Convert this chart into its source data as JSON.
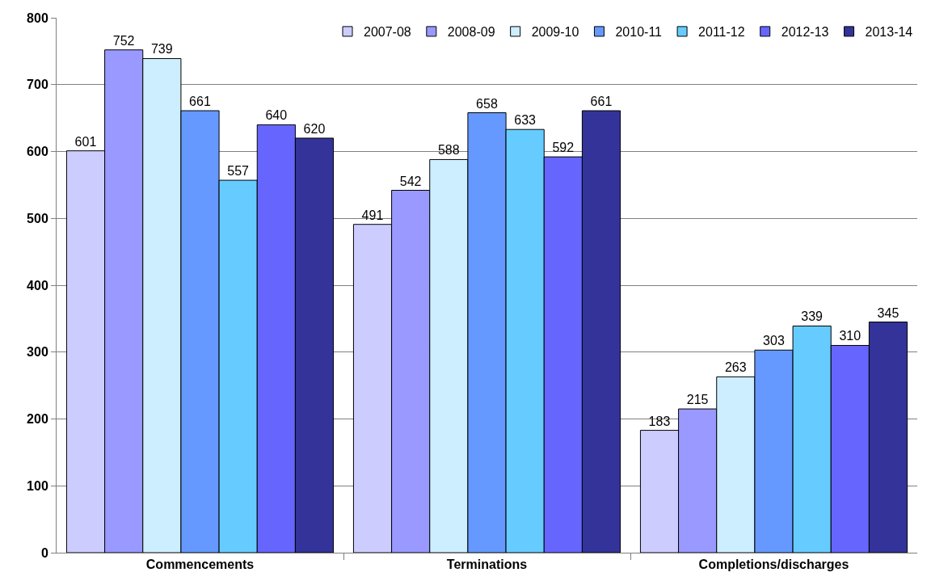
{
  "chart_data": {
    "type": "bar",
    "categories": [
      "Commencements",
      "Terminations",
      "Completions/discharges"
    ],
    "series": [
      {
        "name": "2007-08",
        "color": "#ccccff",
        "values": [
          601,
          491,
          183
        ]
      },
      {
        "name": "2008-09",
        "color": "#9999ff",
        "values": [
          752,
          542,
          215
        ]
      },
      {
        "name": "2009-10",
        "color": "#cceeff",
        "values": [
          739,
          588,
          263
        ]
      },
      {
        "name": "2010-11",
        "color": "#6699ff",
        "values": [
          661,
          658,
          303
        ]
      },
      {
        "name": "2011-12",
        "color": "#66ccff",
        "values": [
          557,
          633,
          339
        ]
      },
      {
        "name": "2012-13",
        "color": "#6666ff",
        "values": [
          640,
          592,
          310
        ]
      },
      {
        "name": "2013-14",
        "color": "#333399",
        "values": [
          620,
          661,
          345
        ]
      }
    ],
    "ylim": [
      0,
      800
    ],
    "yticks": [
      0,
      100,
      200,
      300,
      400,
      500,
      600,
      700,
      800
    ],
    "grid": "y",
    "legend": "top right",
    "data_labels": true
  }
}
